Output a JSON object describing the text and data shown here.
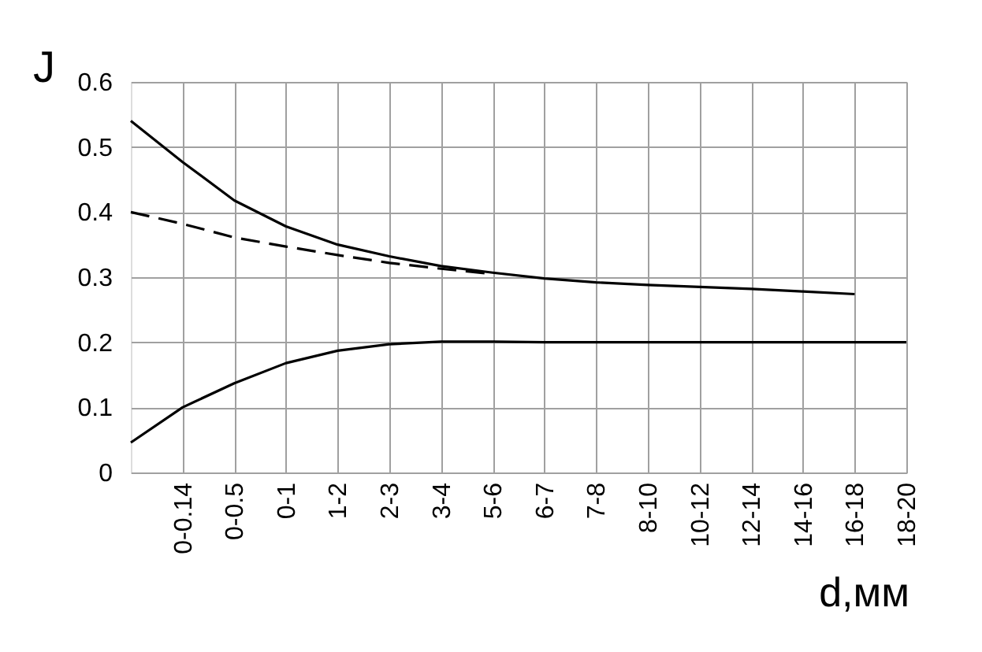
{
  "chart_data": {
    "type": "line",
    "xlabel": "d,мм",
    "ylabel": "J",
    "categories": [
      null,
      "0-0.14",
      "0-0.5",
      "0-1",
      "1-2",
      "2-3",
      "3-4",
      "5-6",
      "6-7",
      "7-8",
      "8-10",
      "10-12",
      "12-14",
      "14-16",
      "16-18",
      "18-20"
    ],
    "series": [
      {
        "color": "#000000",
        "line_style": "solid",
        "values": [
          0.54,
          0.477,
          0.418,
          0.378,
          0.35,
          0.332,
          0.317,
          0.307,
          0.298,
          0.292,
          0.288,
          0.285,
          0.282,
          0.278,
          0.274,
          null
        ]
      },
      {
        "color": "#000000",
        "line_style": "dashed",
        "values": [
          0.4,
          0.382,
          0.361,
          0.347,
          0.334,
          0.322,
          0.313,
          0.305,
          null,
          null,
          null,
          null,
          null,
          null,
          null,
          null
        ]
      },
      {
        "color": "#000000",
        "line_style": "solid",
        "values": [
          0.046,
          0.1,
          0.137,
          0.168,
          0.187,
          0.197,
          0.201,
          0.201,
          0.2,
          0.2,
          0.2,
          0.2,
          0.2,
          0.2,
          0.2,
          0.2
        ]
      }
    ],
    "ylim": [
      0,
      0.6
    ],
    "yticks": [
      0,
      0.1,
      0.2,
      0.3,
      0.4,
      0.5,
      0.6
    ],
    "grid": true,
    "marker": "none"
  }
}
